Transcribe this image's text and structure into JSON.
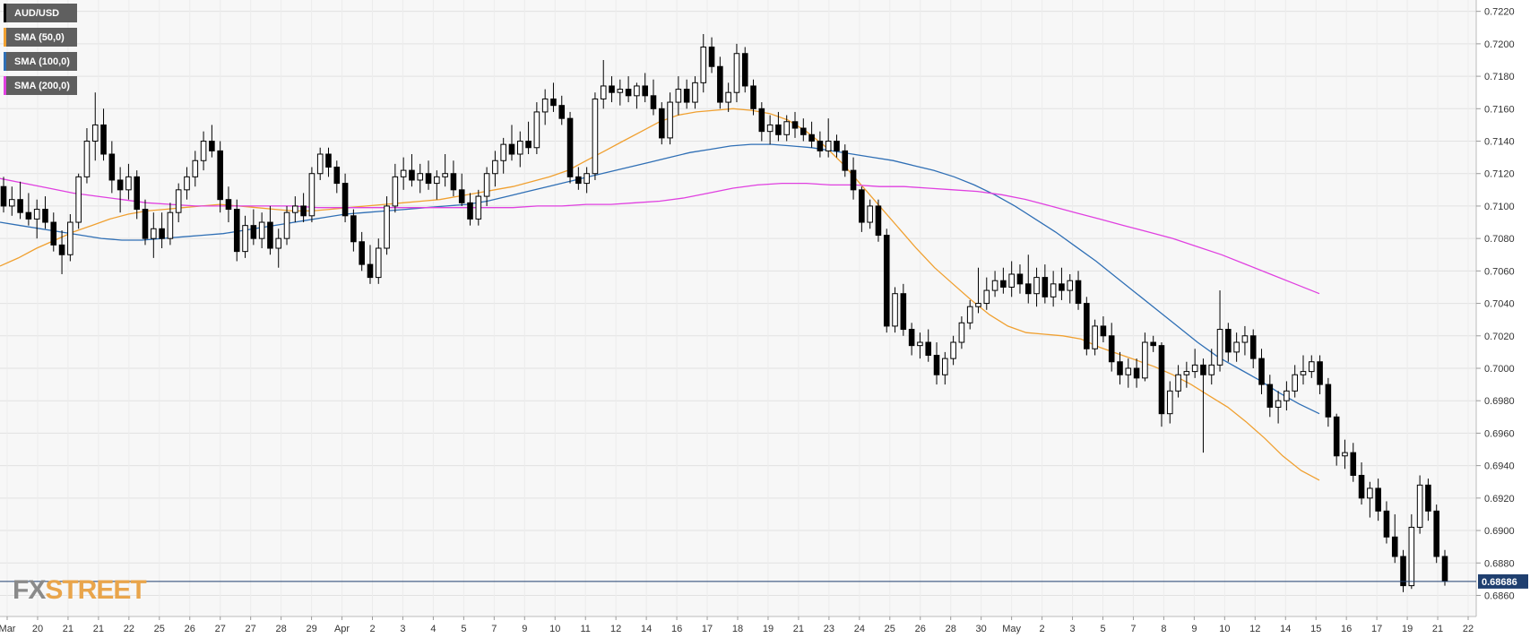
{
  "chart_data": {
    "type": "candlestick",
    "symbol": "AUD/USD",
    "legend": [
      {
        "label": "AUD/USD",
        "color": "#000000"
      },
      {
        "label": "SMA (50,0)",
        "color": "#f0a030"
      },
      {
        "label": "SMA (100,0)",
        "color": "#2f6fb5"
      },
      {
        "label": "SMA (200,0)",
        "color": "#e040e0"
      }
    ],
    "y_axis": {
      "ticks": [
        "0.7220",
        "0.7200",
        "0.7180",
        "0.7160",
        "0.7140",
        "0.7120",
        "0.7100",
        "0.7080",
        "0.7060",
        "0.7040",
        "0.7020",
        "0.7000",
        "0.6980",
        "0.6960",
        "0.6940",
        "0.6920",
        "0.6900",
        "0.6880",
        "0.6860"
      ],
      "ylim": [
        0.6847,
        0.7227
      ],
      "position": "right"
    },
    "x_axis": {
      "labels": [
        "Mar",
        "20",
        "21",
        "21",
        "22",
        "25",
        "26",
        "27",
        "27",
        "28",
        "29",
        "Apr",
        "2",
        "3",
        "4",
        "5",
        "7",
        "9",
        "10",
        "11",
        "12",
        "14",
        "16",
        "17",
        "18",
        "19",
        "21",
        "23",
        "24",
        "25",
        "26",
        "28",
        "30",
        "May",
        "2",
        "3",
        "5",
        "7",
        "8",
        "9",
        "10",
        "12",
        "14",
        "15",
        "16",
        "17",
        "19",
        "21",
        "22"
      ]
    },
    "current_price": {
      "label": "0.68686",
      "value": 0.68686
    },
    "candles": [
      [
        0.7112,
        0.7118,
        0.7096,
        0.71
      ],
      [
        0.71,
        0.7112,
        0.7094,
        0.7104
      ],
      [
        0.7104,
        0.7115,
        0.7092,
        0.7096
      ],
      [
        0.7096,
        0.7108,
        0.7088,
        0.7092
      ],
      [
        0.7092,
        0.7104,
        0.708,
        0.7098
      ],
      [
        0.7098,
        0.7106,
        0.7086,
        0.709
      ],
      [
        0.709,
        0.7096,
        0.7072,
        0.7076
      ],
      [
        0.7076,
        0.7085,
        0.7058,
        0.707
      ],
      [
        0.707,
        0.7095,
        0.7066,
        0.709
      ],
      [
        0.709,
        0.712,
        0.7086,
        0.7118
      ],
      [
        0.7118,
        0.7148,
        0.7114,
        0.714
      ],
      [
        0.714,
        0.717,
        0.7128,
        0.715
      ],
      [
        0.715,
        0.716,
        0.7128,
        0.7132
      ],
      [
        0.7132,
        0.714,
        0.7108,
        0.7116
      ],
      [
        0.7116,
        0.7124,
        0.7096,
        0.711
      ],
      [
        0.711,
        0.7126,
        0.7104,
        0.7118
      ],
      [
        0.7118,
        0.7122,
        0.7092,
        0.7098
      ],
      [
        0.7098,
        0.7104,
        0.7076,
        0.708
      ],
      [
        0.708,
        0.7096,
        0.7068,
        0.7086
      ],
      [
        0.7086,
        0.7096,
        0.7074,
        0.708
      ],
      [
        0.708,
        0.7102,
        0.7076,
        0.7096
      ],
      [
        0.7096,
        0.7114,
        0.709,
        0.711
      ],
      [
        0.711,
        0.7124,
        0.7104,
        0.7118
      ],
      [
        0.7118,
        0.7134,
        0.7112,
        0.7128
      ],
      [
        0.7128,
        0.7146,
        0.7122,
        0.714
      ],
      [
        0.714,
        0.715,
        0.713,
        0.7134
      ],
      [
        0.7134,
        0.714,
        0.7096,
        0.7104
      ],
      [
        0.7104,
        0.7112,
        0.709,
        0.7098
      ],
      [
        0.7098,
        0.7104,
        0.7066,
        0.7072
      ],
      [
        0.7072,
        0.7094,
        0.7068,
        0.7088
      ],
      [
        0.7088,
        0.7098,
        0.7076,
        0.708
      ],
      [
        0.708,
        0.7096,
        0.7074,
        0.709
      ],
      [
        0.709,
        0.71,
        0.707,
        0.7074
      ],
      [
        0.7074,
        0.7086,
        0.7062,
        0.708
      ],
      [
        0.708,
        0.71,
        0.7076,
        0.7096
      ],
      [
        0.7096,
        0.7106,
        0.709,
        0.71
      ],
      [
        0.71,
        0.7108,
        0.709,
        0.7094
      ],
      [
        0.7094,
        0.7124,
        0.709,
        0.712
      ],
      [
        0.712,
        0.7136,
        0.7116,
        0.7132
      ],
      [
        0.7132,
        0.7136,
        0.7118,
        0.7124
      ],
      [
        0.7124,
        0.7128,
        0.7108,
        0.7114
      ],
      [
        0.7114,
        0.712,
        0.709,
        0.7094
      ],
      [
        0.7094,
        0.7098,
        0.7072,
        0.7078
      ],
      [
        0.7078,
        0.7084,
        0.706,
        0.7064
      ],
      [
        0.7064,
        0.7076,
        0.7052,
        0.7056
      ],
      [
        0.7056,
        0.708,
        0.7052,
        0.7074
      ],
      [
        0.7074,
        0.7106,
        0.707,
        0.71
      ],
      [
        0.71,
        0.7126,
        0.7096,
        0.7118
      ],
      [
        0.7118,
        0.713,
        0.711,
        0.7122
      ],
      [
        0.7122,
        0.7132,
        0.7112,
        0.7116
      ],
      [
        0.7116,
        0.7126,
        0.7108,
        0.712
      ],
      [
        0.712,
        0.7128,
        0.711,
        0.7114
      ],
      [
        0.7114,
        0.7122,
        0.7104,
        0.7118
      ],
      [
        0.7118,
        0.7132,
        0.7112,
        0.712
      ],
      [
        0.712,
        0.7128,
        0.7106,
        0.711
      ],
      [
        0.711,
        0.712,
        0.71,
        0.7102
      ],
      [
        0.7102,
        0.7108,
        0.7088,
        0.7092
      ],
      [
        0.7092,
        0.711,
        0.7088,
        0.7106
      ],
      [
        0.7106,
        0.7124,
        0.71,
        0.712
      ],
      [
        0.712,
        0.7134,
        0.7112,
        0.7128
      ],
      [
        0.7128,
        0.7142,
        0.712,
        0.7138
      ],
      [
        0.7138,
        0.715,
        0.7128,
        0.7132
      ],
      [
        0.7132,
        0.7146,
        0.7124,
        0.714
      ],
      [
        0.714,
        0.7152,
        0.7132,
        0.7136
      ],
      [
        0.7136,
        0.7164,
        0.7132,
        0.7158
      ],
      [
        0.7158,
        0.7172,
        0.715,
        0.7166
      ],
      [
        0.7166,
        0.7176,
        0.7158,
        0.7162
      ],
      [
        0.7162,
        0.7168,
        0.715,
        0.7154
      ],
      [
        0.7154,
        0.7158,
        0.7114,
        0.7118
      ],
      [
        0.7118,
        0.7124,
        0.711,
        0.7114
      ],
      [
        0.7114,
        0.7124,
        0.7108,
        0.712
      ],
      [
        0.712,
        0.717,
        0.7116,
        0.7166
      ],
      [
        0.7166,
        0.719,
        0.716,
        0.7174
      ],
      [
        0.7174,
        0.718,
        0.7164,
        0.717
      ],
      [
        0.717,
        0.7178,
        0.7162,
        0.7172
      ],
      [
        0.7172,
        0.718,
        0.7164,
        0.7168
      ],
      [
        0.7168,
        0.7176,
        0.716,
        0.7174
      ],
      [
        0.7174,
        0.7182,
        0.7164,
        0.7168
      ],
      [
        0.7168,
        0.7178,
        0.7156,
        0.716
      ],
      [
        0.716,
        0.7164,
        0.7138,
        0.7142
      ],
      [
        0.7142,
        0.717,
        0.7138,
        0.7164
      ],
      [
        0.7164,
        0.718,
        0.7156,
        0.7172
      ],
      [
        0.7172,
        0.7178,
        0.716,
        0.7164
      ],
      [
        0.7164,
        0.718,
        0.716,
        0.7176
      ],
      [
        0.7176,
        0.7206,
        0.717,
        0.7198
      ],
      [
        0.7198,
        0.7204,
        0.7182,
        0.7186
      ],
      [
        0.7186,
        0.7192,
        0.716,
        0.7164
      ],
      [
        0.7164,
        0.7176,
        0.7158,
        0.717
      ],
      [
        0.717,
        0.72,
        0.7164,
        0.7194
      ],
      [
        0.7194,
        0.7198,
        0.717,
        0.7174
      ],
      [
        0.7174,
        0.7178,
        0.7156,
        0.716
      ],
      [
        0.716,
        0.7164,
        0.714,
        0.7146
      ],
      [
        0.7146,
        0.7156,
        0.7138,
        0.715
      ],
      [
        0.715,
        0.7158,
        0.714,
        0.7144
      ],
      [
        0.7144,
        0.7156,
        0.714,
        0.7152
      ],
      [
        0.7152,
        0.7158,
        0.7142,
        0.7148
      ],
      [
        0.7148,
        0.7154,
        0.714,
        0.7144
      ],
      [
        0.7144,
        0.7152,
        0.7136,
        0.714
      ],
      [
        0.714,
        0.7146,
        0.713,
        0.7134
      ],
      [
        0.7134,
        0.7154,
        0.713,
        0.714
      ],
      [
        0.714,
        0.7144,
        0.713,
        0.7134
      ],
      [
        0.7134,
        0.7138,
        0.7118,
        0.7122
      ],
      [
        0.7122,
        0.713,
        0.7104,
        0.711
      ],
      [
        0.711,
        0.7112,
        0.7084,
        0.709
      ],
      [
        0.709,
        0.7104,
        0.7086,
        0.71
      ],
      [
        0.71,
        0.7104,
        0.7078,
        0.7082
      ],
      [
        0.7082,
        0.7086,
        0.7022,
        0.7026
      ],
      [
        0.7026,
        0.705,
        0.7022,
        0.7046
      ],
      [
        0.7046,
        0.7052,
        0.702,
        0.7024
      ],
      [
        0.7024,
        0.7028,
        0.7008,
        0.7014
      ],
      [
        0.7014,
        0.7022,
        0.7006,
        0.7016
      ],
      [
        0.7016,
        0.7024,
        0.7004,
        0.7008
      ],
      [
        0.7008,
        0.7016,
        0.699,
        0.6996
      ],
      [
        0.6996,
        0.701,
        0.699,
        0.7006
      ],
      [
        0.7006,
        0.702,
        0.7002,
        0.7016
      ],
      [
        0.7016,
        0.7032,
        0.7012,
        0.7028
      ],
      [
        0.7028,
        0.7042,
        0.7024,
        0.7038
      ],
      [
        0.7038,
        0.7062,
        0.7034,
        0.704
      ],
      [
        0.704,
        0.7056,
        0.7036,
        0.7048
      ],
      [
        0.7048,
        0.706,
        0.7044,
        0.7054
      ],
      [
        0.7054,
        0.7062,
        0.7046,
        0.705
      ],
      [
        0.705,
        0.7066,
        0.7044,
        0.7058
      ],
      [
        0.7058,
        0.7064,
        0.7046,
        0.7052
      ],
      [
        0.7052,
        0.707,
        0.704,
        0.7046
      ],
      [
        0.7046,
        0.7062,
        0.7038,
        0.7056
      ],
      [
        0.7056,
        0.7064,
        0.704,
        0.7044
      ],
      [
        0.7044,
        0.706,
        0.7038,
        0.7052
      ],
      [
        0.7052,
        0.7062,
        0.7042,
        0.7048
      ],
      [
        0.7048,
        0.7058,
        0.704,
        0.7054
      ],
      [
        0.7054,
        0.706,
        0.7036,
        0.704
      ],
      [
        0.704,
        0.7044,
        0.7008,
        0.7012
      ],
      [
        0.7012,
        0.703,
        0.7008,
        0.7026
      ],
      [
        0.7026,
        0.7032,
        0.7016,
        0.702
      ],
      [
        0.702,
        0.7028,
        0.6998,
        0.7004
      ],
      [
        0.7004,
        0.701,
        0.699,
        0.6996
      ],
      [
        0.6996,
        0.7006,
        0.6988,
        0.7
      ],
      [
        0.7,
        0.7006,
        0.6988,
        0.6994
      ],
      [
        0.6994,
        0.7022,
        0.6992,
        0.7016
      ],
      [
        0.7016,
        0.702,
        0.701,
        0.7014
      ],
      [
        0.7014,
        0.7016,
        0.6964,
        0.6972
      ],
      [
        0.6972,
        0.6992,
        0.6966,
        0.6986
      ],
      [
        0.6986,
        0.7002,
        0.6982,
        0.6996
      ],
      [
        0.6996,
        0.7004,
        0.6988,
        0.6998
      ],
      [
        0.6998,
        0.7012,
        0.6994,
        0.7002
      ],
      [
        0.7002,
        0.7006,
        0.6948,
        0.6996
      ],
      [
        0.6996,
        0.7012,
        0.699,
        0.7002
      ],
      [
        0.7002,
        0.7048,
        0.6998,
        0.7024
      ],
      [
        0.7024,
        0.7028,
        0.7004,
        0.701
      ],
      [
        0.701,
        0.7022,
        0.7004,
        0.7016
      ],
      [
        0.7016,
        0.7026,
        0.7008,
        0.702
      ],
      [
        0.702,
        0.7024,
        0.7,
        0.7006
      ],
      [
        0.7006,
        0.7012,
        0.6984,
        0.699
      ],
      [
        0.699,
        0.6996,
        0.697,
        0.6976
      ],
      [
        0.6976,
        0.6986,
        0.6966,
        0.698
      ],
      [
        0.698,
        0.6992,
        0.6974,
        0.6986
      ],
      [
        0.6986,
        0.7002,
        0.6982,
        0.6996
      ],
      [
        0.6996,
        0.7008,
        0.699,
        0.6998
      ],
      [
        0.6998,
        0.7008,
        0.6994,
        0.7004
      ],
      [
        0.7004,
        0.7008,
        0.6984,
        0.699
      ],
      [
        0.699,
        0.6994,
        0.6964,
        0.697
      ],
      [
        0.697,
        0.6972,
        0.694,
        0.6946
      ],
      [
        0.6946,
        0.6956,
        0.6938,
        0.6948
      ],
      [
        0.6948,
        0.6954,
        0.693,
        0.6934
      ],
      [
        0.6934,
        0.6942,
        0.6916,
        0.692
      ],
      [
        0.692,
        0.693,
        0.6908,
        0.6926
      ],
      [
        0.6926,
        0.6932,
        0.6906,
        0.6912
      ],
      [
        0.6912,
        0.6918,
        0.6892,
        0.6896
      ],
      [
        0.6896,
        0.691,
        0.688,
        0.6884
      ],
      [
        0.6884,
        0.6888,
        0.6862,
        0.6866
      ],
      [
        0.6866,
        0.691,
        0.6864,
        0.6902
      ],
      [
        0.6902,
        0.6934,
        0.6898,
        0.6928
      ],
      [
        0.6928,
        0.6932,
        0.6906,
        0.6912
      ],
      [
        0.6912,
        0.6916,
        0.688,
        0.6884
      ],
      [
        0.6884,
        0.6888,
        0.6866,
        0.6869
      ]
    ],
    "sma": [
      {
        "name": "SMA (50,0)",
        "color": "#f0a030",
        "values": [
          0.7063,
          0.7068,
          0.7074,
          0.7079,
          0.7084,
          0.7088,
          0.7092,
          0.7095,
          0.7097,
          0.7098,
          0.7099,
          0.71,
          0.7101,
          0.71,
          0.7099,
          0.7098,
          0.7097,
          0.7097,
          0.7098,
          0.7099,
          0.71,
          0.7101,
          0.7102,
          0.7103,
          0.7104,
          0.7106,
          0.7108,
          0.711,
          0.7112,
          0.7115,
          0.7118,
          0.7122,
          0.7128,
          0.7134,
          0.714,
          0.7146,
          0.7152,
          0.7156,
          0.7158,
          0.7159,
          0.716,
          0.7159,
          0.7157,
          0.7153,
          0.7146,
          0.7137,
          0.7126,
          0.7113,
          0.71,
          0.7087,
          0.7074,
          0.7062,
          0.7052,
          0.7042,
          0.7033,
          0.7026,
          0.7022,
          0.7021,
          0.702,
          0.7018,
          0.7013,
          0.7009,
          0.7005,
          0.7001,
          0.6996,
          0.699,
          0.6983,
          0.6976,
          0.6967,
          0.6957,
          0.6946,
          0.6937,
          0.6931
        ]
      },
      {
        "name": "SMA (100,0)",
        "color": "#2f6fb5",
        "values": [
          0.709,
          0.7088,
          0.7086,
          0.7084,
          0.7082,
          0.708,
          0.7079,
          0.7079,
          0.708,
          0.7081,
          0.7082,
          0.7083,
          0.7085,
          0.7087,
          0.7089,
          0.7091,
          0.7093,
          0.7095,
          0.7096,
          0.7097,
          0.7098,
          0.7099,
          0.71,
          0.7101,
          0.7103,
          0.7106,
          0.7109,
          0.7112,
          0.7115,
          0.7118,
          0.7121,
          0.7124,
          0.7127,
          0.713,
          0.7133,
          0.7135,
          0.7137,
          0.7138,
          0.7138,
          0.7137,
          0.7136,
          0.7134,
          0.7132,
          0.713,
          0.7128,
          0.7125,
          0.7122,
          0.7118,
          0.7113,
          0.7107,
          0.71,
          0.7092,
          0.7084,
          0.7075,
          0.7066,
          0.7056,
          0.7046,
          0.7036,
          0.7026,
          0.7016,
          0.7007,
          0.7,
          0.6993,
          0.6985,
          0.6978,
          0.6972
        ]
      },
      {
        "name": "SMA (200,0)",
        "color": "#e040e0",
        "values": [
          0.7117,
          0.7114,
          0.7111,
          0.7108,
          0.7106,
          0.7104,
          0.7102,
          0.7101,
          0.71,
          0.71,
          0.71,
          0.71,
          0.71,
          0.7099,
          0.7099,
          0.7099,
          0.7099,
          0.7099,
          0.7099,
          0.7099,
          0.7099,
          0.7099,
          0.71,
          0.71,
          0.7101,
          0.7101,
          0.7102,
          0.7103,
          0.7105,
          0.7108,
          0.7111,
          0.7113,
          0.7114,
          0.7114,
          0.7113,
          0.7113,
          0.7112,
          0.7112,
          0.7111,
          0.711,
          0.7109,
          0.7107,
          0.7104,
          0.71,
          0.7096,
          0.7092,
          0.7088,
          0.7084,
          0.708,
          0.7075,
          0.707,
          0.7064,
          0.7058,
          0.7052,
          0.7046
        ]
      }
    ]
  },
  "logo": {
    "fx": "FX",
    "street": "STREET"
  }
}
